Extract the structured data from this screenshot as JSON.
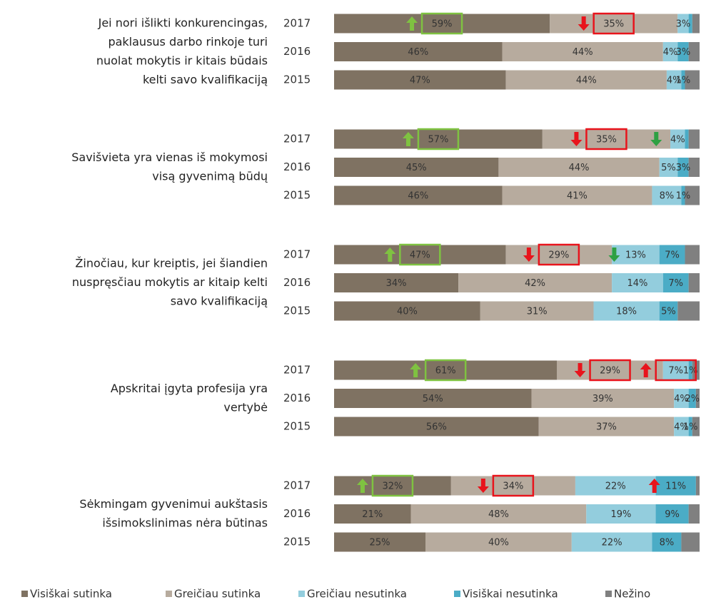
{
  "chart_data": {
    "type": "bar",
    "stacked": true,
    "groups": [
      [
        "Jei nori išlikti konkurencingas,",
        "paklausus darbo rinkoje turi",
        "nuolat mokytis ir kitais būdais",
        "kelti savo kvalifikaciją"
      ],
      [
        "Savišvieta yra vienas iš mokymosi",
        "visą gyvenimą būdų"
      ],
      [
        "Žinočiau, kur kreiptis, jei šiandien",
        "nuspręsčiau mokytis ar kitaip kelti",
        "savo kvalifikaciją"
      ],
      [
        "Apskritai įgyta profesija yra",
        "vertybė"
      ],
      [
        "Sėkmingam gyvenimui aukštasis",
        "išsimokslinimas nėra būtinas"
      ]
    ],
    "categories": [
      "2017",
      "2016",
      "2015",
      "2017",
      "2016",
      "2015",
      "2017",
      "2016",
      "2015",
      "2017",
      "2016",
      "2015",
      "2017",
      "2016",
      "2015"
    ],
    "series": [
      {
        "name": "Visiškai sutinka",
        "color": "#7f7262",
        "values": [
          59,
          46,
          47,
          57,
          45,
          46,
          47,
          34,
          40,
          61,
          54,
          56,
          32,
          21,
          25
        ],
        "value_labels": [
          "59%",
          "46%",
          "47%",
          "57%",
          "45%",
          "46%",
          "47%",
          "34%",
          "40%",
          "61%",
          "54%",
          "56%",
          "32%",
          "21%",
          "25%"
        ]
      },
      {
        "name": "Greičiau sutinka",
        "color": "#b7ab9e",
        "values": [
          35,
          44,
          44,
          35,
          44,
          41,
          29,
          42,
          31,
          29,
          39,
          37,
          34,
          48,
          40
        ],
        "value_labels": [
          "35%",
          "44%",
          "44%",
          "35%",
          "44%",
          "41%",
          "29%",
          "42%",
          "31%",
          "29%",
          "39%",
          "37%",
          "34%",
          "48%",
          "40%"
        ]
      },
      {
        "name": "Greičiau nesutinka",
        "color": "#93cddd",
        "values": [
          3,
          4,
          4,
          4,
          5,
          8,
          13,
          14,
          18,
          7,
          4,
          4,
          22,
          19,
          22
        ],
        "value_labels": [
          "3%",
          "4%",
          "4%",
          "4%",
          "5%",
          "8%",
          "13%",
          "14%",
          "18%",
          "7%",
          "4%",
          "4%",
          "22%",
          "19%",
          "22%"
        ]
      },
      {
        "name": "Visiškai nesutinka",
        "color": "#4bacc6",
        "values": [
          1,
          3,
          1,
          1,
          3,
          1,
          7,
          7,
          5,
          1,
          2,
          1,
          11,
          9,
          8
        ],
        "value_labels": [
          null,
          "3%",
          "1%",
          null,
          "3%",
          "1%",
          "7%",
          "7%",
          "5%",
          "1%",
          "2%",
          "1%",
          "11%",
          "9%",
          "8%"
        ]
      },
      {
        "name": "Nežino",
        "color": "#808080",
        "values": [
          2,
          3,
          4,
          3,
          3,
          4,
          4,
          3,
          6,
          2,
          1,
          2,
          1,
          3,
          5
        ],
        "value_labels": [
          null,
          null,
          null,
          null,
          null,
          null,
          null,
          null,
          null,
          null,
          null,
          null,
          null,
          null,
          null
        ]
      }
    ]
  }
}
